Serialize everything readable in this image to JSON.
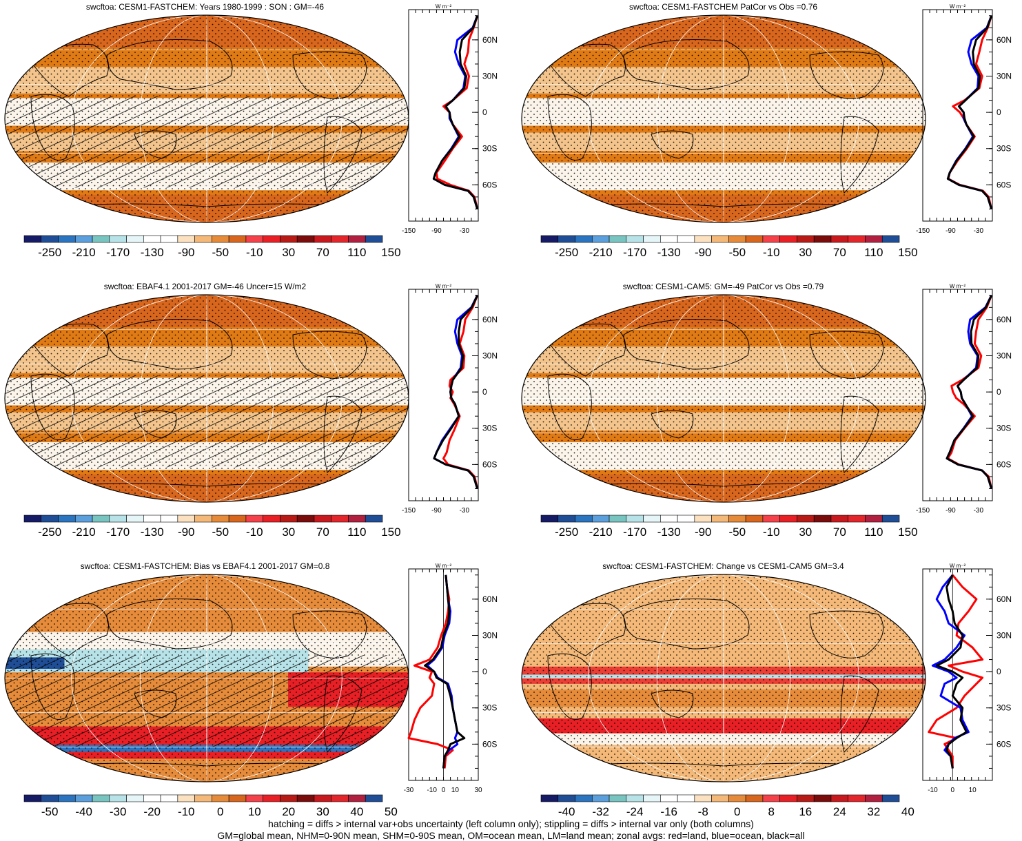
{
  "colors": {
    "ocean_map_fill": "#e07a14",
    "light_fill": "#f3c48c",
    "white_band": "#fbf4ea",
    "land_line": "#000000",
    "zonal_land": "#ff0000",
    "zonal_ocean": "#0000ff",
    "zonal_all": "#000000"
  },
  "colorbar_main": {
    "colors": [
      "#161b66",
      "#1f4e97",
      "#2b74bf",
      "#5b9fdd",
      "#78c4c0",
      "#b7e3e8",
      "#e6f6f8",
      "#ffffff",
      "#ffffff",
      "#fbe1c0",
      "#f4b978",
      "#e58b3a",
      "#d8661d",
      "#f4414a",
      "#e81f24",
      "#b81a16",
      "#7a0c0c",
      "#c8191e",
      "#e3262b",
      "#b22040",
      "#1f4e97"
    ],
    "labels": [
      "-250",
      "-210",
      "-170",
      "-130",
      "-90",
      "-50",
      "-10",
      "30",
      "70",
      "110",
      "150"
    ]
  },
  "colorbar_bias": {
    "colors": [
      "#161b66",
      "#1f4e97",
      "#2b74bf",
      "#5b9fdd",
      "#78c4c0",
      "#b7e3e8",
      "#e6f6f8",
      "#ffffff",
      "#ffffff",
      "#fbe1c0",
      "#f4b978",
      "#e58b3a",
      "#d8661d",
      "#f4414a",
      "#e81f24",
      "#b81a16",
      "#7a0c0c",
      "#c8191e",
      "#e3262b",
      "#b22040",
      "#1f4e97"
    ],
    "labels": [
      "-50",
      "-40",
      "-30",
      "-20",
      "-10",
      "0",
      "10",
      "20",
      "30",
      "40",
      "50"
    ]
  },
  "colorbar_change": {
    "colors": [
      "#161b66",
      "#1f4e97",
      "#2b74bf",
      "#5b9fdd",
      "#78c4c0",
      "#b7e3e8",
      "#e6f6f8",
      "#ffffff",
      "#ffffff",
      "#fbe1c0",
      "#f4b978",
      "#e58b3a",
      "#d8661d",
      "#f4414a",
      "#e81f24",
      "#b81a16",
      "#7a0c0c",
      "#c8191e",
      "#e3262b",
      "#b22040",
      "#1f4e97"
    ],
    "labels": [
      "-40",
      "-32",
      "-24",
      "-16",
      "-8",
      "0",
      "8",
      "16",
      "24",
      "32",
      "40"
    ]
  },
  "zonal_axis": {
    "unit_label": "W m⁻²",
    "lat_labels": [
      "60N",
      "30N",
      "0",
      "30S",
      "60S"
    ],
    "lat_values": [
      60,
      30,
      0,
      -30,
      -60
    ]
  },
  "panels": [
    {
      "title": "swcftoa: CESM1-FASTCHEM: Years 1980-1999 : SON : GM=-46",
      "kind": "climatology",
      "hatched": true,
      "zonal": {
        "xmin": -150,
        "xmax": 0,
        "tick_labels": [
          "-150",
          "-90",
          "-30"
        ],
        "tick_values": [
          -150,
          -90,
          -30
        ],
        "lat": [
          80,
          70,
          60,
          50,
          40,
          30,
          20,
          10,
          5,
          0,
          -5,
          -10,
          -20,
          -30,
          -40,
          -50,
          -55,
          -60,
          -65,
          -70,
          -80
        ],
        "land": [
          -2,
          -10,
          -20,
          -22,
          -30,
          -20,
          -25,
          -55,
          -75,
          -62,
          -60,
          -55,
          -35,
          -55,
          -72,
          -90,
          -88,
          -60,
          -20,
          -8,
          -2
        ],
        "ocean": [
          -2,
          -12,
          -45,
          -50,
          -42,
          -28,
          -32,
          -55,
          -70,
          -62,
          -62,
          -55,
          -42,
          -58,
          -78,
          -92,
          -96,
          -72,
          -22,
          -10,
          -2
        ],
        "all": [
          -2,
          -11,
          -35,
          -40,
          -38,
          -26,
          -30,
          -55,
          -70,
          -62,
          -60,
          -55,
          -40,
          -57,
          -78,
          -92,
          -96,
          -72,
          -22,
          -10,
          -2
        ]
      }
    },
    {
      "title": "swcftoa: CESM1-FASTCHEM PatCor vs Obs =0.76",
      "kind": "climatology",
      "hatched": false,
      "zonal": {
        "xmin": -150,
        "xmax": 0,
        "tick_labels": [
          "-150",
          "-90",
          "-30"
        ],
        "tick_values": [
          -150,
          -90,
          -30
        ],
        "lat": [
          80,
          70,
          60,
          50,
          40,
          30,
          20,
          10,
          5,
          0,
          -5,
          -10,
          -20,
          -30,
          -40,
          -50,
          -55,
          -60,
          -65,
          -70,
          -80
        ],
        "land": [
          -2,
          -10,
          -22,
          -28,
          -35,
          -22,
          -28,
          -60,
          -85,
          -70,
          -62,
          -56,
          -38,
          -55,
          -75,
          -92,
          -95,
          -70,
          -20,
          -8,
          -2
        ],
        "ocean": [
          -2,
          -12,
          -45,
          -52,
          -45,
          -30,
          -32,
          -58,
          -72,
          -62,
          -62,
          -56,
          -42,
          -58,
          -78,
          -92,
          -96,
          -72,
          -22,
          -10,
          -2
        ],
        "all": [
          -2,
          -11,
          -35,
          -42,
          -40,
          -27,
          -30,
          -58,
          -72,
          -62,
          -60,
          -56,
          -40,
          -57,
          -77,
          -92,
          -96,
          -72,
          -22,
          -10,
          -2
        ]
      }
    },
    {
      "title": "swcftoa: EBAF4.1 2001-2017 GM=-46 Uncer=15 W/m2",
      "kind": "climatology",
      "hatched": true,
      "zonal": {
        "xmin": -150,
        "xmax": 0,
        "tick_labels": [
          "-150",
          "-90",
          "-30"
        ],
        "tick_values": [
          -150,
          -90,
          -30
        ],
        "lat": [
          80,
          70,
          60,
          50,
          40,
          30,
          20,
          10,
          5,
          0,
          -5,
          -10,
          -20,
          -30,
          -40,
          -50,
          -55,
          -60,
          -65,
          -70,
          -80
        ],
        "land": [
          -2,
          -12,
          -28,
          -32,
          -40,
          -30,
          -32,
          -60,
          -62,
          -55,
          -60,
          -52,
          -40,
          -50,
          -62,
          -68,
          -75,
          -65,
          -20,
          -8,
          -2
        ],
        "ocean": [
          -2,
          -15,
          -45,
          -50,
          -45,
          -35,
          -38,
          -55,
          -58,
          -60,
          -58,
          -50,
          -42,
          -60,
          -78,
          -90,
          -95,
          -70,
          -22,
          -10,
          -2
        ],
        "all": [
          -2,
          -14,
          -38,
          -42,
          -42,
          -33,
          -36,
          -55,
          -58,
          -60,
          -58,
          -50,
          -42,
          -58,
          -76,
          -90,
          -95,
          -70,
          -22,
          -10,
          -2
        ]
      }
    },
    {
      "title": "swcftoa: CESM1-CAM5: GM=-49 PatCor vs Obs =0.79",
      "kind": "climatology",
      "hatched": false,
      "zonal": {
        "xmin": -150,
        "xmax": 0,
        "tick_labels": [
          "-150",
          "-90",
          "-30"
        ],
        "tick_values": [
          -150,
          -90,
          -30
        ],
        "lat": [
          80,
          70,
          60,
          50,
          40,
          30,
          20,
          10,
          5,
          0,
          -5,
          -10,
          -20,
          -30,
          -40,
          -50,
          -55,
          -60,
          -65,
          -70,
          -80
        ],
        "land": [
          -2,
          -12,
          -30,
          -35,
          -38,
          -24,
          -30,
          -65,
          -88,
          -85,
          -78,
          -62,
          -38,
          -60,
          -80,
          -88,
          -96,
          -72,
          -22,
          -8,
          -2
        ],
        "ocean": [
          -2,
          -15,
          -48,
          -52,
          -48,
          -32,
          -35,
          -62,
          -75,
          -68,
          -66,
          -58,
          -44,
          -62,
          -82,
          -92,
          -98,
          -74,
          -22,
          -10,
          -2
        ],
        "all": [
          -2,
          -14,
          -40,
          -46,
          -45,
          -30,
          -33,
          -62,
          -75,
          -68,
          -66,
          -58,
          -42,
          -61,
          -82,
          -92,
          -98,
          -74,
          -22,
          -10,
          -2
        ]
      }
    },
    {
      "title": "swcftoa: CESM1-FASTCHEM: Bias vs EBAF4.1 2001-2017  GM=0.8",
      "kind": "bias",
      "hatched": true,
      "zonal": {
        "xmin": -30,
        "xmax": 30,
        "tick_labels": [
          "-30",
          "-10",
          "0",
          "10",
          "30"
        ],
        "tick_values": [
          -30,
          -10,
          0,
          10,
          30
        ],
        "zero_line": true,
        "lat": [
          80,
          70,
          60,
          50,
          40,
          30,
          20,
          10,
          5,
          0,
          -5,
          -10,
          -20,
          -30,
          -40,
          -50,
          -55,
          -60,
          -65,
          -70,
          -80
        ],
        "land": [
          2,
          3,
          5,
          4,
          2,
          -2,
          -5,
          -12,
          -25,
          -10,
          -12,
          -8,
          -10,
          -20,
          -25,
          -28,
          -30,
          -5,
          8,
          2,
          1
        ],
        "ocean": [
          2,
          3,
          4,
          6,
          5,
          1,
          -1,
          -8,
          -14,
          -8,
          -5,
          4,
          7,
          8,
          10,
          12,
          10,
          12,
          5,
          1,
          0
        ],
        "all": [
          2,
          3,
          4,
          5,
          4,
          0,
          -2,
          -9,
          -16,
          -8,
          -6,
          3,
          6,
          8,
          10,
          12,
          18,
          6,
          4,
          1,
          0
        ]
      }
    },
    {
      "title": "swcftoa: CESM1-FASTCHEM: Change vs CESM1-CAM5 GM=3.4",
      "kind": "change",
      "hatched": false,
      "zonal": {
        "xmin": -15,
        "xmax": 20,
        "tick_labels": [
          "-10",
          "0",
          "10"
        ],
        "tick_values": [
          -10,
          0,
          10
        ],
        "zero_line": true,
        "lat": [
          80,
          70,
          60,
          50,
          40,
          30,
          20,
          10,
          5,
          0,
          -5,
          -10,
          -20,
          -30,
          -40,
          -50,
          -55,
          -60,
          -65,
          -70,
          -80
        ],
        "land": [
          0,
          5,
          12,
          8,
          3,
          2,
          10,
          15,
          -2,
          5,
          15,
          12,
          6,
          2,
          -8,
          -12,
          2,
          -4,
          -2,
          0,
          0
        ],
        "ocean": [
          0,
          -5,
          -8,
          -4,
          -2,
          6,
          2,
          -4,
          -10,
          -2,
          2,
          -4,
          -6,
          4,
          5,
          8,
          1,
          -2,
          -4,
          -1,
          0
        ],
        "all": [
          0,
          -3,
          -2,
          0,
          1,
          5,
          4,
          -2,
          -8,
          0,
          5,
          2,
          0,
          5,
          4,
          7,
          2,
          -2,
          -3,
          -1,
          0
        ]
      }
    }
  ],
  "footnote": {
    "line1": "hatching = diffs > internal var+obs uncertainty (left column only); stippling = diffs > internal var only (both columns)",
    "line2": "GM=global mean, NHM=0-90N mean, SHM=0-90S mean, OM=ocean mean, LM=land mean; zonal avgs: red=land, blue=ocean, black=all"
  }
}
